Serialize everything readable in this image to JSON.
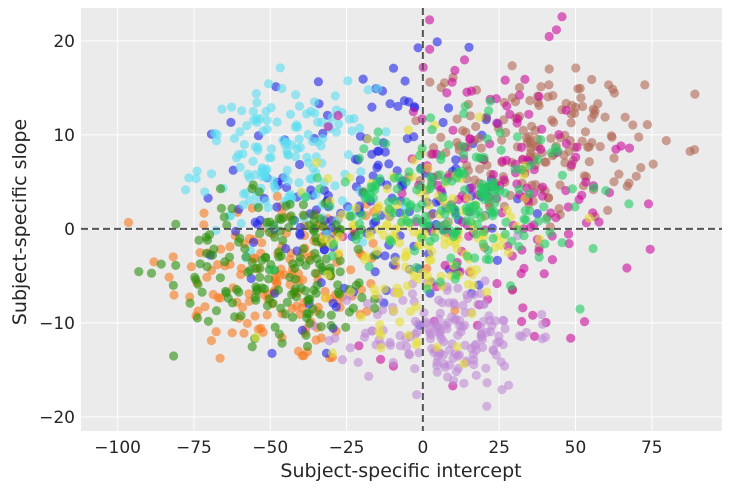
{
  "chart_data": {
    "type": "scatter",
    "title": "",
    "xlabel": "Subject-specific intercept",
    "ylabel": "Subject-specific slope",
    "xlim": [
      -112,
      98
    ],
    "ylim": [
      -21.5,
      23.5
    ],
    "xticks": [
      -100,
      -75,
      -50,
      -25,
      0,
      25,
      50,
      75
    ],
    "yticks": [
      -20,
      -10,
      0,
      10,
      20
    ],
    "x_tick_labels": [
      "−100",
      "−75",
      "−50",
      "−25",
      "0",
      "25",
      "50",
      "75"
    ],
    "y_tick_labels": [
      "−20",
      "−10",
      "0",
      "10",
      "20"
    ],
    "grid": true,
    "legend": "none",
    "reference_lines": [
      {
        "orientation": "vertical",
        "value": 0,
        "style": "dashed",
        "color": "#555555"
      },
      {
        "orientation": "horizontal",
        "value": 0,
        "style": "dashed",
        "color": "#555555"
      }
    ],
    "background_color": "#ebebeb",
    "point_alpha": 0.6,
    "series": [
      {
        "color": "#f97a1e",
        "center": [
          -45,
          -5
        ],
        "spread": [
          20,
          5
        ],
        "n": 160
      },
      {
        "color": "#1f24e8",
        "center": [
          -15,
          3
        ],
        "spread": [
          22,
          7
        ],
        "n": 180
      },
      {
        "color": "#5bdef0",
        "center": [
          -45,
          7
        ],
        "spread": [
          14,
          4
        ],
        "n": 160
      },
      {
        "color": "#b06854",
        "center": [
          38,
          9
        ],
        "spread": [
          17,
          4
        ],
        "n": 180
      },
      {
        "color": "#cc0b9c",
        "center": [
          25,
          3
        ],
        "spread": [
          22,
          8
        ],
        "n": 160
      },
      {
        "color": "#bf8ad6",
        "center": [
          8,
          -11
        ],
        "spread": [
          14,
          3
        ],
        "n": 170
      },
      {
        "color": "#2b8f0b",
        "center": [
          -45,
          -4
        ],
        "spread": [
          18,
          4
        ],
        "n": 180
      },
      {
        "color": "#e6e034",
        "center": [
          0,
          -1
        ],
        "spread": [
          17,
          5
        ],
        "n": 160
      },
      {
        "color": "#21cc63",
        "center": [
          10,
          3
        ],
        "spread": [
          20,
          4
        ],
        "n": 200
      }
    ]
  }
}
